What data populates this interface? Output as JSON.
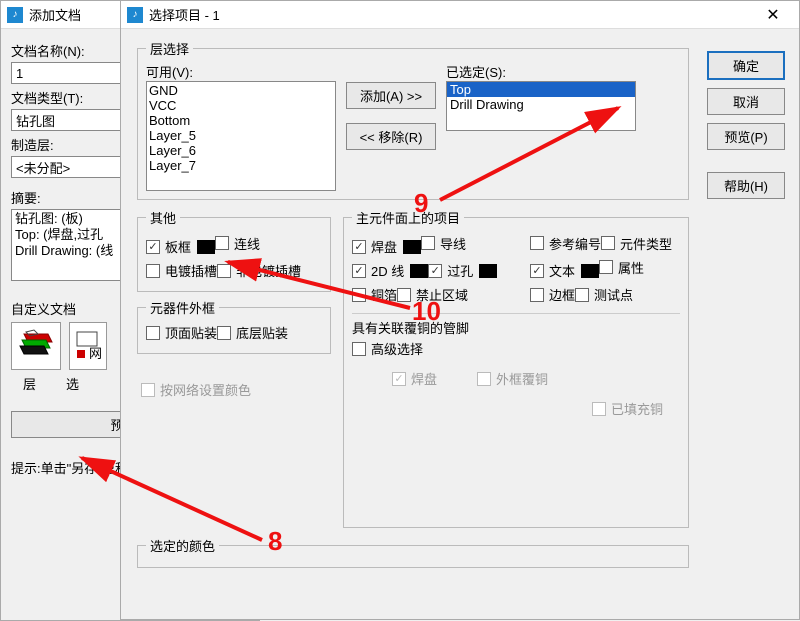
{
  "back_window": {
    "title": "添加文档",
    "doc_name_label": "文档名称(N):",
    "doc_name_value": "1",
    "doc_type_label": "文档类型(T):",
    "doc_type_value": "钻孔图",
    "mfg_label": "制造层:",
    "mfg_value": "<未分配>",
    "summary_label": "摘要:",
    "summary_lines": [
      "钻孔图: (板)",
      "Top: (焊盘,过孔",
      "Drill Drawing: (线"
    ],
    "custom_label": "自定义文档",
    "layer_tab": "层",
    "sel_tab_partial": "选",
    "preview_btn_partial": "预览设",
    "hint": "提示:单击\"另存\"型和输出设"
  },
  "front_window": {
    "title": "选择项目 - 1",
    "buttons": {
      "ok": "确定",
      "cancel": "取消",
      "preview": "预览(P)",
      "help": "帮助(H)"
    },
    "layer_group": "层选择",
    "available_label": "可用(V):",
    "available": [
      "GND",
      "VCC",
      "Bottom",
      "Layer_5",
      "Layer_6",
      "Layer_7"
    ],
    "add_btn": "添加(A) >>",
    "remove_btn": "<< 移除(R)",
    "selected_label": "已选定(S):",
    "selected": [
      "Top",
      "Drill Drawing"
    ],
    "other_group": "其他",
    "other": [
      {
        "label": "板框",
        "checked": true,
        "swatch": true
      },
      {
        "label": "连线",
        "checked": false
      },
      {
        "label": "电镀插槽",
        "checked": false
      },
      {
        "label": "非电镀插槽",
        "checked": false
      }
    ],
    "outline_group": "元器件外框",
    "outline": [
      {
        "label": "顶面贴装",
        "checked": false
      },
      {
        "label": "底层贴装",
        "checked": false
      }
    ],
    "net_color": "按网络设置颜色",
    "primary_group": "主元件面上的项目",
    "primary_col1": [
      {
        "label": "焊盘",
        "checked": true,
        "swatch": true
      },
      {
        "label": "导线",
        "checked": false
      },
      {
        "label": "2D 线",
        "checked": true,
        "swatch": true
      },
      {
        "label": "过孔",
        "checked": true,
        "swatch": true
      },
      {
        "label": "铜箔",
        "checked": false
      },
      {
        "label": "禁止区域",
        "checked": false
      }
    ],
    "primary_col2": [
      {
        "label": "参考编号",
        "checked": false
      },
      {
        "label": "元件类型",
        "checked": false
      },
      {
        "label": "文本",
        "checked": true,
        "swatch": true
      },
      {
        "label": "属性",
        "checked": false
      },
      {
        "label": "边框",
        "checked": false
      },
      {
        "label": "测试点",
        "checked": false
      }
    ],
    "assoc_label": "具有关联覆铜的管脚",
    "adv_label": "高级选择",
    "disabled1": "焊盘",
    "disabled2": "外框覆铜",
    "disabled3": "已填充铜",
    "color_group": "选定的颜色"
  },
  "annotations": {
    "n8": "8",
    "n9": "9",
    "n10": "10"
  }
}
